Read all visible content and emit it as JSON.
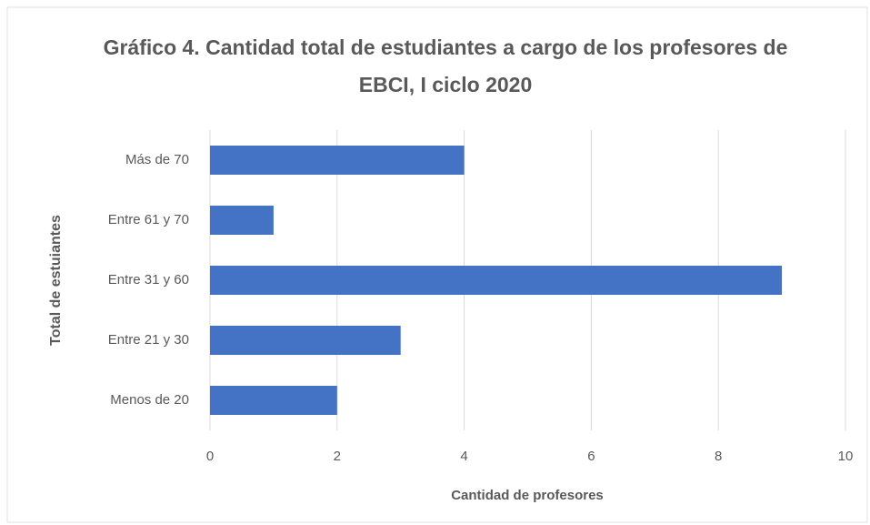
{
  "chart_data": {
    "type": "bar",
    "orientation": "horizontal",
    "title": "Gráfico 4. Cantidad total de estudiantes a cargo de los profesores de EBCI, I ciclo 2020",
    "categories": [
      "Más de 70",
      "Entre 61 y 70",
      "Entre 31 y 60",
      "Entre 21 y 30",
      "Menos de 20"
    ],
    "values": [
      4,
      1,
      9,
      3,
      2
    ],
    "color": "#4472c4",
    "xlim": [
      0,
      10
    ],
    "xticks": [
      0,
      2,
      4,
      6,
      8,
      10
    ],
    "grid": true,
    "xlabel": "Cantidad de profesores",
    "ylabel": "Total de estuiantes"
  }
}
